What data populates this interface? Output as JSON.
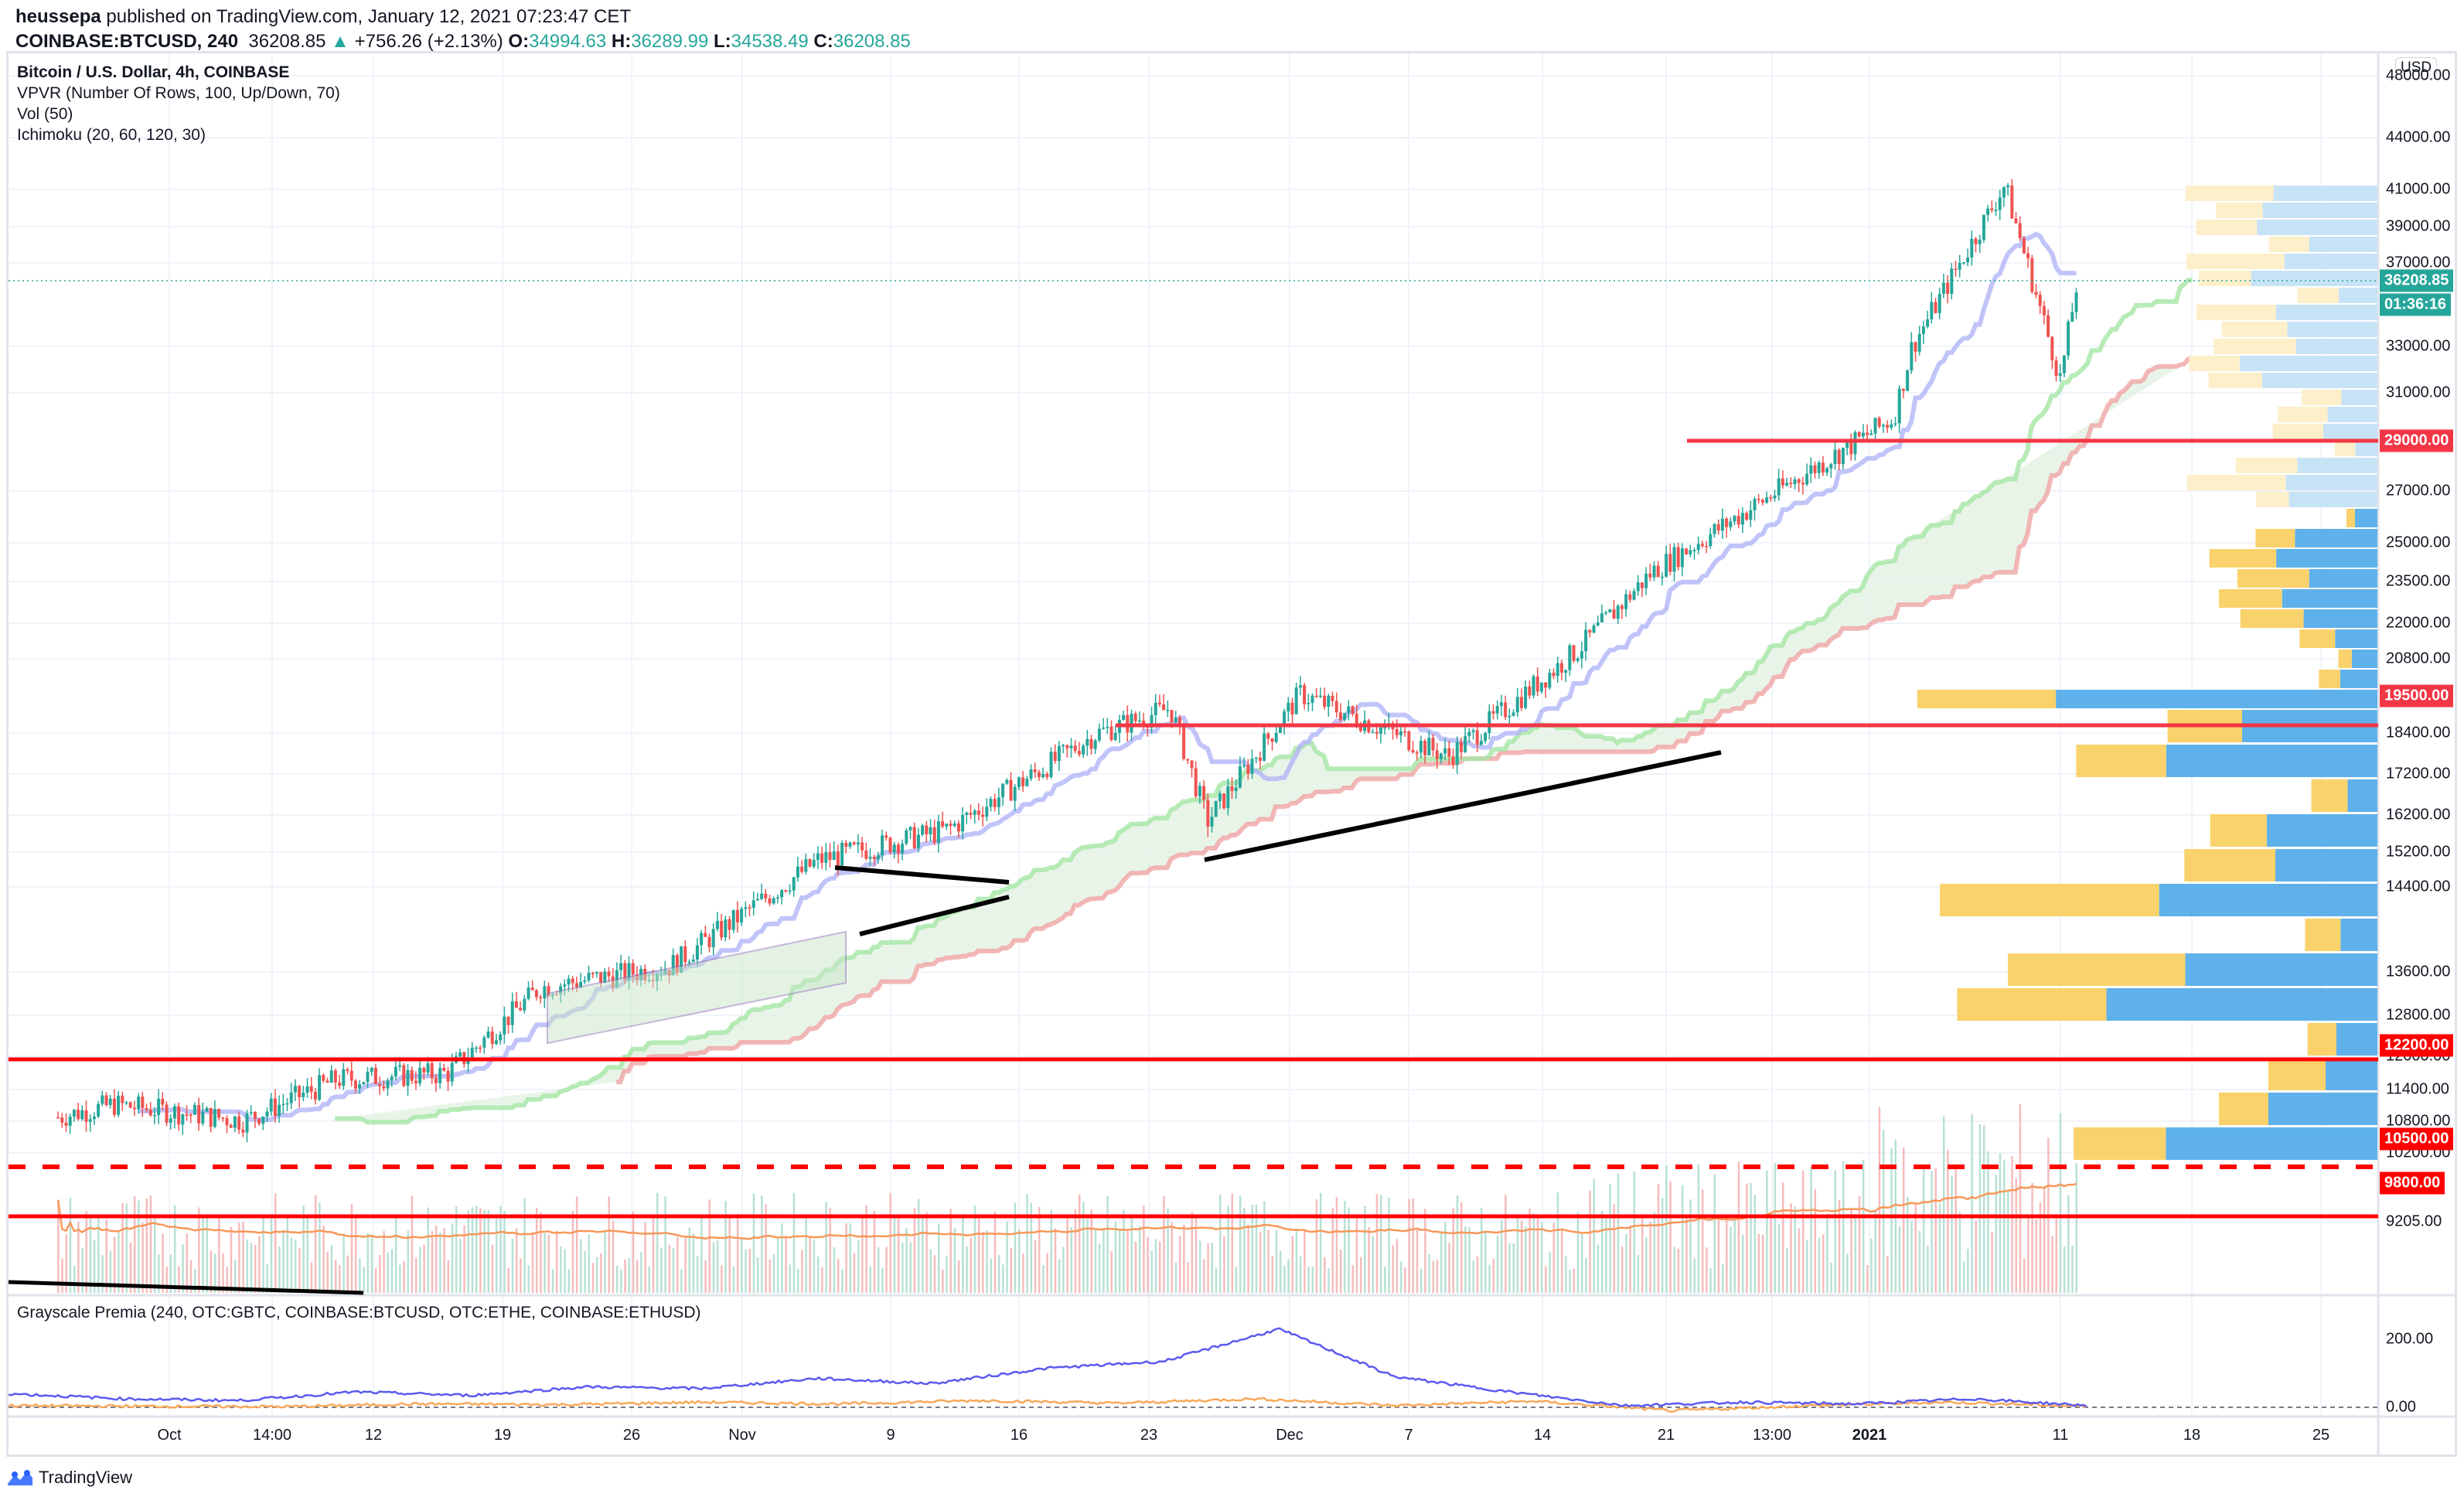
{
  "header": {
    "author": "heussepa",
    "published_text": " published on TradingView.com, January 12, 2021 07:23:47 CET",
    "symbol": "COINBASE:BTCUSD, 240",
    "last_price": "36208.85",
    "change": "+756.26 (+2.13%)",
    "open_label": "O:",
    "open": "34994.63",
    "high_label": "H:",
    "high": "36289.99",
    "low_label": "L:",
    "low": "34538.49",
    "close_label": "C:",
    "close": "36208.85"
  },
  "legend": {
    "title": "Bitcoin / U.S. Dollar, 4h, COINBASE",
    "indicators": [
      "VPVR (Number Of Rows, 100, Up/Down, 70)",
      "Vol (50)",
      "Ichimoku (20, 60, 120, 30)"
    ]
  },
  "currency_button": "USD",
  "price_axis": {
    "ticks": [
      {
        "label": "48000.00",
        "y": 98
      },
      {
        "label": "44000.00",
        "y": 178
      },
      {
        "label": "41000.00",
        "y": 245
      },
      {
        "label": "39000.00",
        "y": 293
      },
      {
        "label": "37000.00",
        "y": 340
      },
      {
        "label": "33000.00",
        "y": 448
      },
      {
        "label": "31000.00",
        "y": 508
      },
      {
        "label": "27000.00",
        "y": 635
      },
      {
        "label": "25000.00",
        "y": 702
      },
      {
        "label": "23500.00",
        "y": 752
      },
      {
        "label": "22000.00",
        "y": 806
      },
      {
        "label": "20800.00",
        "y": 852
      },
      {
        "label": "18400.00",
        "y": 948
      },
      {
        "label": "17200.00",
        "y": 1001
      },
      {
        "label": "16200.00",
        "y": 1054
      },
      {
        "label": "15200.00",
        "y": 1102
      },
      {
        "label": "14400.00",
        "y": 1147
      },
      {
        "label": "13600.00",
        "y": 1257
      },
      {
        "label": "12800.00",
        "y": 1313
      },
      {
        "label": "12000.00",
        "y": 1366
      },
      {
        "label": "11400.00",
        "y": 1409
      },
      {
        "label": "10800.00",
        "y": 1450
      },
      {
        "label": "10200.00",
        "y": 1491
      },
      {
        "label": "9205.00",
        "y": 1580
      }
    ],
    "badges": [
      {
        "label": "36208.85",
        "y": 363,
        "color": "#26a69a",
        "name": "last-price-badge"
      },
      {
        "label": "01:36:16",
        "y": 394,
        "color": "#26a69a",
        "name": "bar-countdown-badge"
      },
      {
        "label": "29000.00",
        "y": 570,
        "color": "#f23645",
        "name": "level-29000-badge"
      },
      {
        "label": "19500.00",
        "y": 900,
        "color": "#f23645",
        "name": "level-19500-badge"
      },
      {
        "label": "12200.00",
        "y": 1352,
        "color": "#ff0000",
        "name": "level-12200-badge"
      },
      {
        "label": "10500.00",
        "y": 1473,
        "color": "#ff0000",
        "name": "level-10500-badge"
      },
      {
        "label": "9800.00",
        "y": 1530,
        "color": "#ff0000",
        "name": "level-9800-badge"
      }
    ]
  },
  "premia_axis": [
    {
      "label": "200.00",
      "y": 1732
    },
    {
      "label": "0.00",
      "y": 1820
    }
  ],
  "time_axis": [
    {
      "label": "Oct",
      "x": 219
    },
    {
      "label": "14:00",
      "x": 352
    },
    {
      "label": "12",
      "x": 483
    },
    {
      "label": "19",
      "x": 650
    },
    {
      "label": "26",
      "x": 817
    },
    {
      "label": "Nov",
      "x": 960
    },
    {
      "label": "9",
      "x": 1152
    },
    {
      "label": "16",
      "x": 1318
    },
    {
      "label": "23",
      "x": 1486
    },
    {
      "label": "Dec",
      "x": 1668
    },
    {
      "label": "7",
      "x": 1822
    },
    {
      "label": "14",
      "x": 1995
    },
    {
      "label": "21",
      "x": 2155
    },
    {
      "label": "13:00",
      "x": 2292
    },
    {
      "label": "2021",
      "x": 2418,
      "bold": true
    },
    {
      "label": "11",
      "x": 2665
    },
    {
      "label": "18",
      "x": 2835
    },
    {
      "label": "25",
      "x": 3002
    }
  ],
  "premia_pane": {
    "title": "Grayscale Premia (240, OTC:GBTC, COINBASE:BTCUSD, OTC:ETHE, COINBASE:ETHUSD)"
  },
  "footer": {
    "brand": "TradingView"
  },
  "colors": {
    "up": "#26a69a",
    "down": "#ef5350",
    "level": "#f23645",
    "tenkan": "#b2b5f7",
    "senkou_a": "#a5e6a5",
    "senkou_b": "#f0a5a5",
    "cloud": "#e3f1e3",
    "vp_up": "#5eb1ea",
    "vp_down": "#f9d26b",
    "vp_up_light": "#c7e3f6",
    "vp_down_light": "#fdefc9",
    "gbtc": "#5b5bef",
    "ethe": "#f8a95a",
    "vol_ma": "#f7985a"
  },
  "chart_data": {
    "type": "candlestick",
    "title": "Bitcoin / U.S. Dollar, 4h, COINBASE",
    "symbol": "COINBASE:BTCUSD",
    "timeframe": "4h",
    "x_range": [
      "2020-09-24",
      "2021-01-28"
    ],
    "ylim": [
      9000,
      48000
    ],
    "y_scale": "log",
    "horizontal_levels": [
      29000,
      19500,
      12200,
      10500,
      9800
    ],
    "approx_close_path": [
      {
        "date": "2020-09-25",
        "price": 10700
      },
      {
        "date": "2020-09-28",
        "price": 10900
      },
      {
        "date": "2020-10-05",
        "price": 10650
      },
      {
        "date": "2020-10-10",
        "price": 11300
      },
      {
        "date": "2020-10-16",
        "price": 11400
      },
      {
        "date": "2020-10-21",
        "price": 12900
      },
      {
        "date": "2020-10-28",
        "price": 13300
      },
      {
        "date": "2020-11-05",
        "price": 15500
      },
      {
        "date": "2020-11-12",
        "price": 16200
      },
      {
        "date": "2020-11-20",
        "price": 18600
      },
      {
        "date": "2020-11-24",
        "price": 19300
      },
      {
        "date": "2020-11-26",
        "price": 16400
      },
      {
        "date": "2020-12-01",
        "price": 19700
      },
      {
        "date": "2020-12-09",
        "price": 18000
      },
      {
        "date": "2020-12-16",
        "price": 21000
      },
      {
        "date": "2020-12-20",
        "price": 23500
      },
      {
        "date": "2020-12-27",
        "price": 26500
      },
      {
        "date": "2021-01-02",
        "price": 29300
      },
      {
        "date": "2021-01-03",
        "price": 32500
      },
      {
        "date": "2021-01-08",
        "price": 41000
      },
      {
        "date": "2021-01-11",
        "price": 31000
      },
      {
        "date": "2021-01-12",
        "price": 36208.85
      }
    ],
    "last": {
      "open": 34994.63,
      "high": 36289.99,
      "low": 34538.49,
      "close": 36208.85,
      "change": 756.26,
      "change_pct": 2.13
    },
    "indicators": [
      "VPVR (100, Up/Down 70)",
      "Vol (50)",
      "Ichimoku (20, 60, 120, 30)"
    ],
    "drawings": [
      "ascending channel Oct 21–Nov 4",
      "symmetrical triangle Nov 6–16",
      "rising trendline Nov 26–Dec 24",
      "descending line in volume pane Sep–Oct"
    ],
    "secondary_pane": {
      "title": "Grayscale Premia",
      "series": [
        {
          "name": "GBTC premia",
          "approx_path": [
            40,
            25,
            20,
            45,
            35,
            60,
            55,
            85,
            70,
            115,
            135,
            230,
            90,
            45,
            5,
            15,
            10,
            25,
            5
          ]
        },
        {
          "name": "ETHE premia",
          "approx_path": [
            5,
            3,
            2,
            10,
            8,
            15,
            10,
            20,
            12,
            25,
            5,
            18,
            -10,
            5,
            15,
            3
          ]
        }
      ],
      "ylim": [
        -20,
        280
      ],
      "ticks": [
        0,
        200
      ]
    }
  }
}
